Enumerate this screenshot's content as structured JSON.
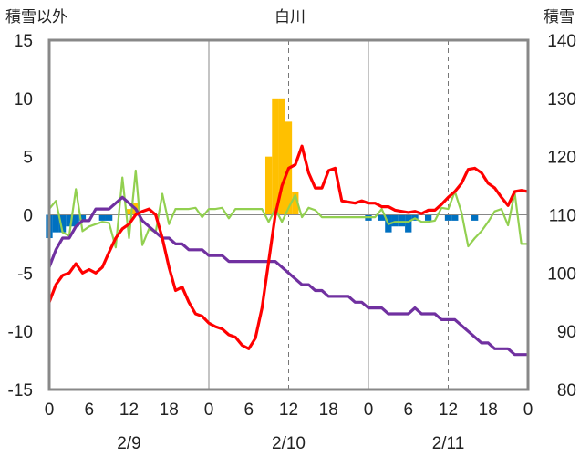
{
  "chart_data": {
    "type": "combo",
    "title": "白川",
    "left_axis_label": "積雪以外",
    "right_axis_label": "積雪",
    "left_ylim": [
      -15,
      15
    ],
    "left_ticks": [
      "15",
      "10",
      "5",
      "0",
      "-5",
      "-10",
      "-15"
    ],
    "right_ylim": [
      80,
      140
    ],
    "right_ticks": [
      "140",
      "130",
      "120",
      "110",
      "100",
      "90",
      "80"
    ],
    "x_hour_ticks": [
      "0",
      "6",
      "12",
      "18",
      "0",
      "6",
      "12",
      "18",
      "0",
      "6",
      "12",
      "18",
      "0"
    ],
    "date_labels": [
      "2/9",
      "2/10",
      "2/11"
    ],
    "grid": "dashed vertical every 12h",
    "colors": {
      "temperature": "#ff0000",
      "snow_depth": "#7030a0",
      "wind": "#92d050",
      "snowfall": "#ffc000",
      "negative_bars": "#0070c0"
    },
    "hours": 73,
    "series": [
      {
        "key": "temperature",
        "axis": "left",
        "values": [
          -7.5,
          -6,
          -5.2,
          -5,
          -4.2,
          -5,
          -4.7,
          -5,
          -4.5,
          -3.2,
          -2,
          -1.2,
          -0.8,
          0,
          0.3,
          0.5,
          0,
          -2,
          -4.5,
          -6.5,
          -6.2,
          -7.5,
          -8.5,
          -8.7,
          -9.3,
          -9.6,
          -9.8,
          -10.3,
          -10.5,
          -11.2,
          -11.5,
          -10.6,
          -8,
          -4,
          0,
          2.5,
          4,
          4.3,
          5.9,
          3.6,
          2.3,
          2.3,
          3.8,
          4,
          1.2,
          1.1,
          1,
          1.2,
          1,
          1,
          0.7,
          0.7,
          0.4,
          0.3,
          0.2,
          0.3,
          0.1,
          0.4,
          0.4,
          0.9,
          1.5,
          2,
          2.7,
          3.9,
          4,
          3.6,
          2.7,
          2.3,
          1.5,
          0.8,
          2,
          2.1,
          2
        ]
      },
      {
        "key": "snow_depth",
        "axis": "right",
        "values": [
          101,
          104,
          106,
          106,
          108,
          109,
          109,
          111,
          111,
          111,
          112,
          113,
          112,
          111,
          109,
          108,
          107,
          106,
          106,
          105,
          105,
          104,
          104,
          104,
          103,
          103,
          103,
          102,
          102,
          102,
          102,
          102,
          102,
          102,
          102,
          101,
          100,
          99,
          98,
          98,
          97,
          97,
          96,
          96,
          96,
          96,
          95,
          95,
          94,
          94,
          94,
          93,
          93,
          93,
          93,
          94,
          93,
          93,
          93,
          92,
          92,
          92,
          91,
          90,
          89,
          88,
          88,
          87,
          87,
          87,
          86,
          86,
          86
        ]
      },
      {
        "key": "wind",
        "axis": "left",
        "values": [
          0.5,
          1.2,
          -1.5,
          -1.8,
          2.2,
          -1.4,
          -1,
          -0.8,
          -0.6,
          -0.7,
          -2.8,
          3.2,
          -2,
          3.8,
          -2.6,
          -1.2,
          -1.5,
          1.8,
          -0.8,
          0.5,
          0.5,
          0.5,
          0.6,
          -0.2,
          0.5,
          0.5,
          0.6,
          -0.3,
          0.5,
          0.5,
          0.5,
          0.5,
          0.5,
          -0.6,
          0.5,
          -0.6,
          0.6,
          1.7,
          -0.2,
          0.6,
          0.4,
          -0.2,
          -0.2,
          -0.2,
          -0.2,
          -0.2,
          -0.2,
          -0.2,
          -0.2,
          -0.2,
          0.5,
          -0.8,
          -0.6,
          -0.6,
          -0.6,
          -0.3,
          -0.6,
          -0.6,
          -0.5,
          0.6,
          0.5,
          2,
          0.2,
          -2.7,
          -2,
          -1.4,
          -0.6,
          0.3,
          0.5,
          -0.9,
          1.9,
          -2.5,
          -2.5
        ]
      },
      {
        "key": "snowfall",
        "axis": "left",
        "bars": [
          [
            12,
            0.5
          ],
          [
            13,
            1
          ],
          [
            33,
            5
          ],
          [
            34,
            10
          ],
          [
            35,
            10
          ],
          [
            36,
            8
          ],
          [
            37,
            2
          ]
        ]
      },
      {
        "key": "negative_bars",
        "axis": "left",
        "bars": [
          [
            0,
            -2
          ],
          [
            1,
            -1.5
          ],
          [
            2,
            -1.5
          ],
          [
            3,
            -1
          ],
          [
            4,
            -1
          ],
          [
            5,
            -0.5
          ],
          [
            8,
            -0.5
          ],
          [
            9,
            -0.5
          ],
          [
            48,
            -0.5
          ],
          [
            50,
            -0.5
          ],
          [
            51,
            -1.5
          ],
          [
            52,
            -1
          ],
          [
            53,
            -1
          ],
          [
            54,
            -1.5
          ],
          [
            55,
            -0.5
          ],
          [
            57,
            -0.5
          ],
          [
            60,
            -0.5
          ],
          [
            61,
            -0.5
          ],
          [
            64,
            -0.5
          ]
        ]
      }
    ]
  }
}
